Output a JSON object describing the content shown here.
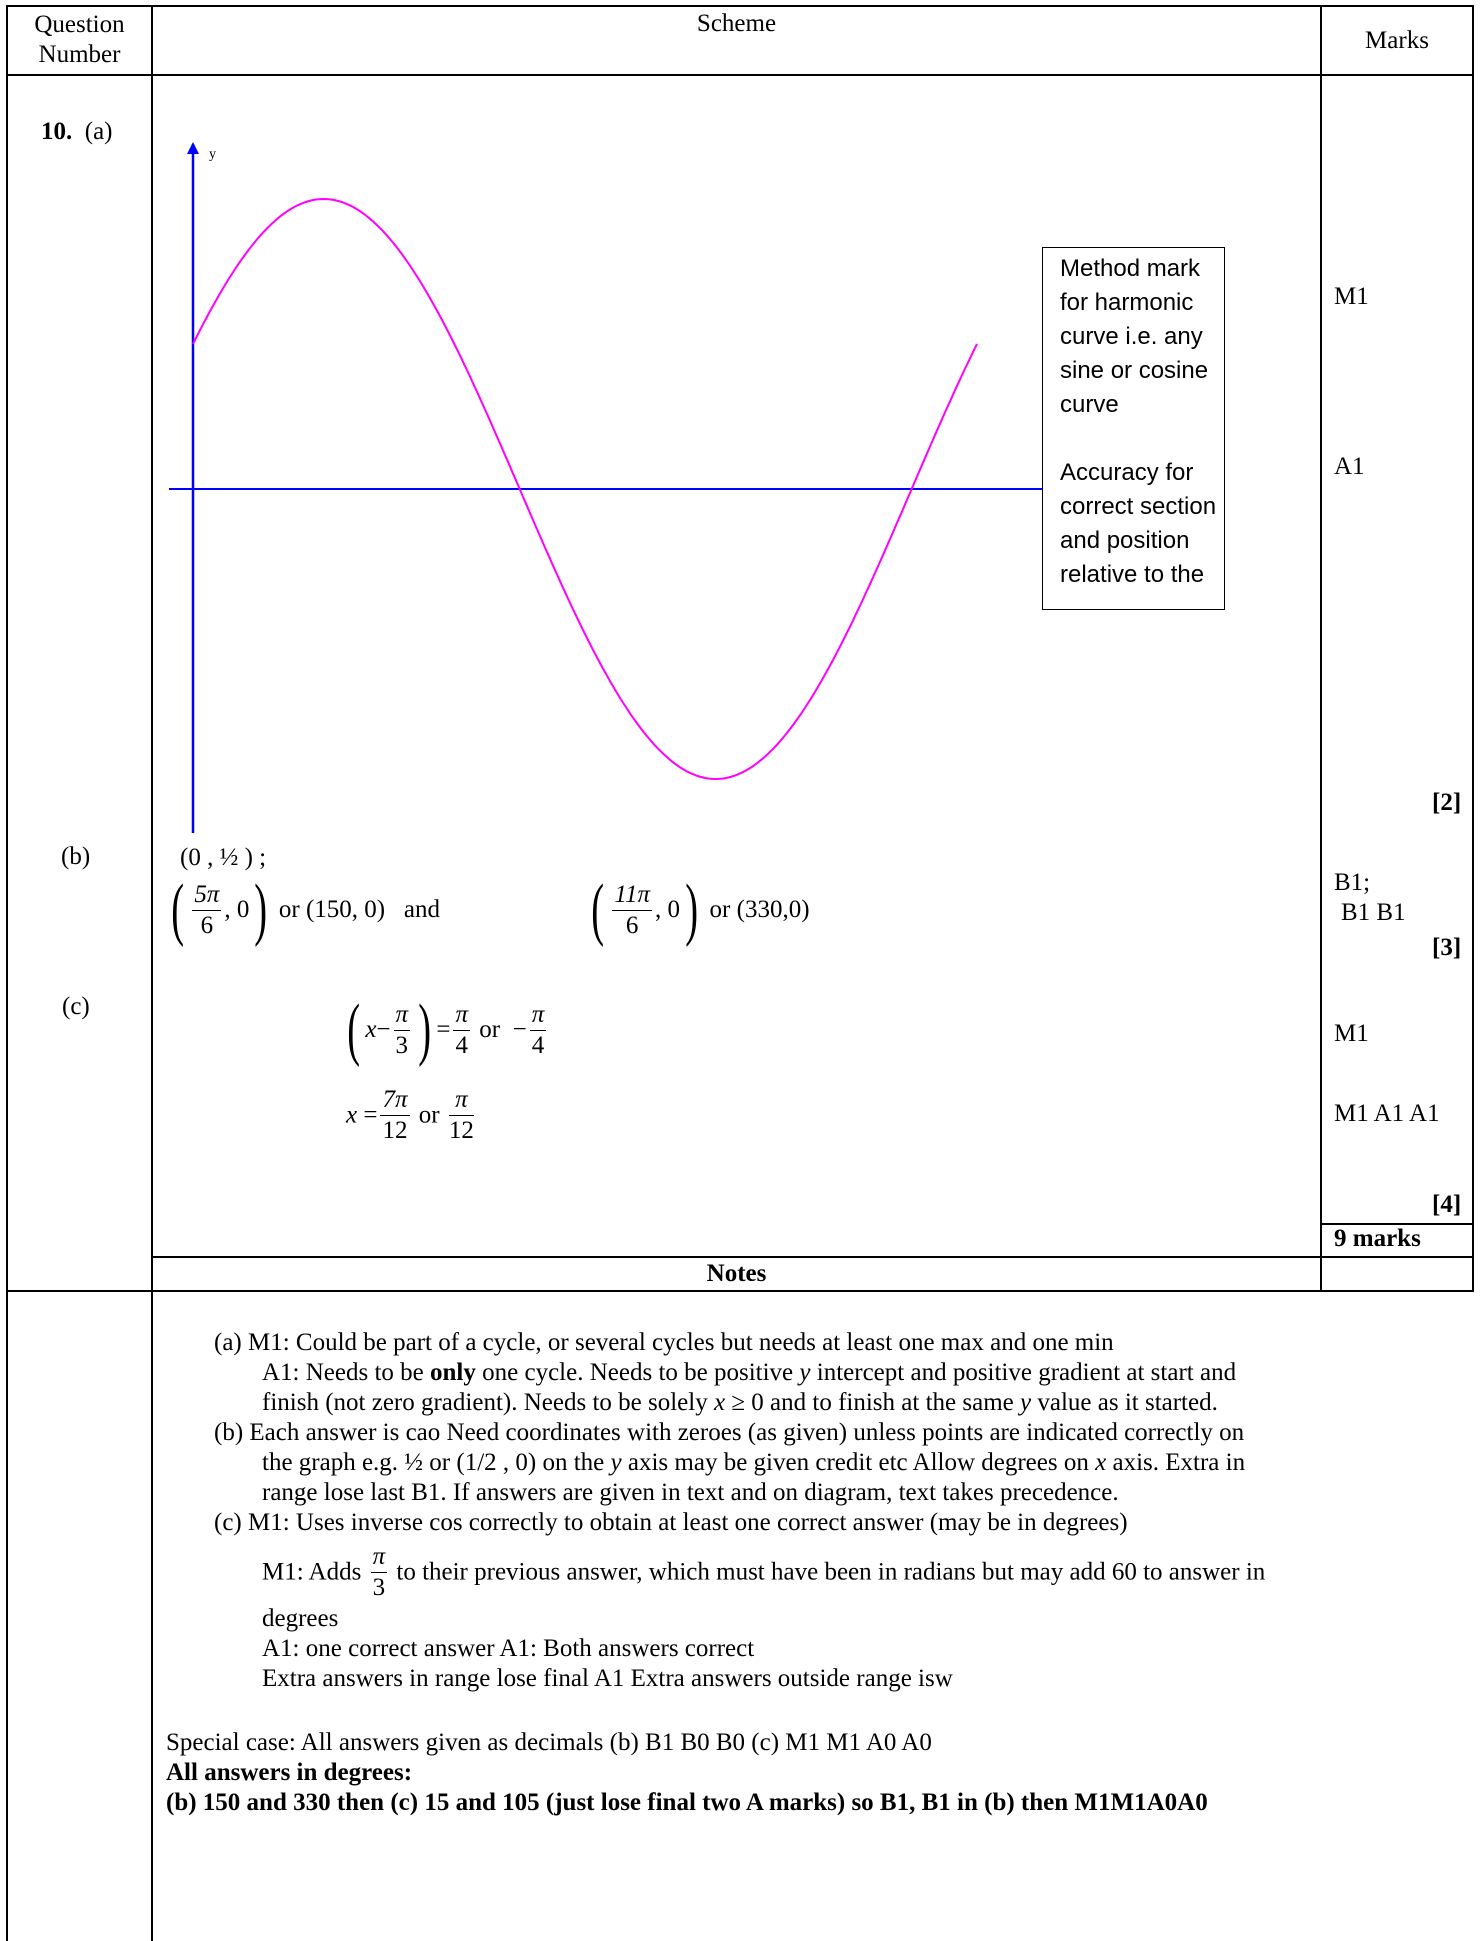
{
  "header": {
    "question_line1": "Question",
    "question_line2": "Number",
    "scheme": "Scheme",
    "marks": "Marks"
  },
  "question": {
    "number": "10.",
    "part_a": "(a)",
    "part_b": "(b)",
    "part_c": "(c)"
  },
  "graph": {
    "y_axis_label": "y",
    "box_lines": [
      "Method mark",
      "for harmonic",
      "curve i.e. any",
      "sine or cosine",
      "curve",
      "",
      "Accuracy for",
      "correct section",
      "and position",
      "relative to the"
    ],
    "colors": {
      "axes": "#0000ff",
      "curve": "#ff00ff"
    }
  },
  "part_b": {
    "first_point": "(0 , ½ ) ;",
    "p1_num": "5π",
    "p1_den": "6",
    "p1_tail": ", 0",
    "or1": "or (150, 0)",
    "and": "and",
    "p2_num": "11π",
    "p2_den": "6",
    "p2_tail": ", 0",
    "or2": "or (330,0)"
  },
  "part_c": {
    "eq1_x": "x",
    "eq1_minus": "−",
    "eq1_num": "π",
    "eq1_den": "3",
    "eq1_eq": "=",
    "eq1_rnum": "π",
    "eq1_rden": "4",
    "eq1_or": "or",
    "eq1_neg": "−",
    "eq1_nnum": "π",
    "eq1_nden": "4",
    "eq2_x": "x",
    "eq2_eq": "=",
    "eq2_num": "7π",
    "eq2_den": "12",
    "eq2_or": "or",
    "eq2_num2": "π",
    "eq2_den2": "12"
  },
  "marks": {
    "m1": "M1",
    "a1": "A1",
    "total_a": "[2]",
    "b1": "B1;",
    "b1b1": "B1  B1",
    "total_b": "[3]",
    "c_m1": "M1",
    "c_m1a1a1": "M1 A1 A1",
    "total_c": "[4]",
    "total": "9 marks"
  },
  "notes": {
    "heading": "Notes",
    "a1": "(a)  M1: Could be part of a cycle, or several cycles but needs at least one max and one min",
    "a2_pre": "A1: Needs to be ",
    "a2_bold": "only",
    "a2_mid": " one cycle. Needs to be positive ",
    "a2_y": "y",
    "a2_post": " intercept  and  positive gradient at start and",
    "a3_pre": "finish (not zero gradient). Needs to be solely  ",
    "a3_x": "x",
    "a3_ge": " ≥ 0",
    "a3_post": "  and to finish at the same ",
    "a3_y": "y",
    "a3_end": " value as it started.",
    "b1": "(b)  Each answer is cao Need coordinates with zeroes (as given) unless points are indicated correctly on",
    "b2_pre": "the graph e.g. ½ or (1/2 , 0) on the ",
    "b2_y": "y",
    "b2_mid": " axis may be given credit etc Allow degrees on ",
    "b2_x": "x",
    "b2_post": " axis. Extra in",
    "b3": "range lose last B1. If answers are given in text and on diagram, text takes precedence.",
    "c1": "(c)  M1: Uses inverse cos correctly to obtain at least one correct answer (may be in degrees)",
    "c2_pre": "M1: Adds",
    "c2_num": "π",
    "c2_den": "3",
    "c2_post": " to their previous answer, which must have been in radians but may add 60 to answer in",
    "c3": "degrees",
    "c4": "A1: one correct answer    A1: Both answers correct",
    "c5": "Extra answers in range lose final A1  Extra answers outside range isw",
    "sp1": "Special case: All answers given as decimals  (b) B1 B0 B0  (c) M1 M1 A0 A0",
    "sp2": "All answers in degrees:",
    "sp3": "(b) 150 and 330  then (c) 15 and 105 (just lose final two A marks) so B1, B1 in (b) then M1M1A0A0"
  }
}
